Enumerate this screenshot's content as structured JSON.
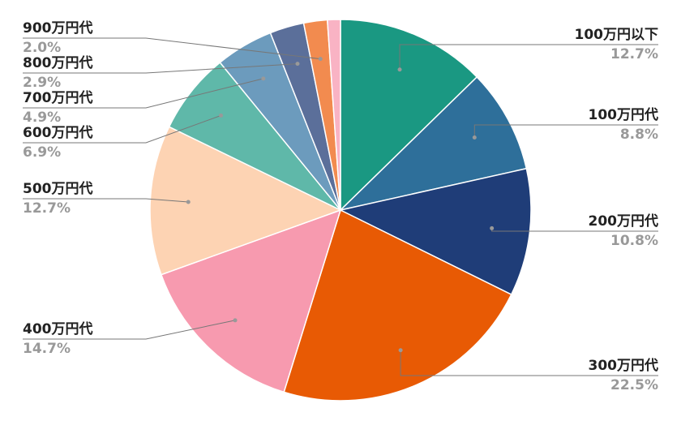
{
  "chart_data": {
    "type": "pie",
    "categories": [
      "100万円以下",
      "100万円代",
      "200万円代",
      "300万円代",
      "400万円代",
      "500万円代",
      "600万円代",
      "700万円代",
      "800万円代",
      "900万円代",
      null
    ],
    "values": [
      12.7,
      8.8,
      10.8,
      22.5,
      14.7,
      12.7,
      6.9,
      4.9,
      2.9,
      2.0,
      1.1
    ],
    "value_labels": [
      "12.7%",
      "8.8%",
      "10.8%",
      "22.5%",
      "14.7%",
      "12.7%",
      "6.9%",
      "4.9%",
      "2.9%",
      "2.0%",
      null
    ],
    "colors": [
      "#1a9882",
      "#2e6f9a",
      "#1f3d78",
      "#e85a04",
      "#f79aaf",
      "#fdd3b3",
      "#5fb8a9",
      "#6c9bbd",
      "#5b6f9a",
      "#f28b4f",
      "#f9b3c4"
    ]
  }
}
